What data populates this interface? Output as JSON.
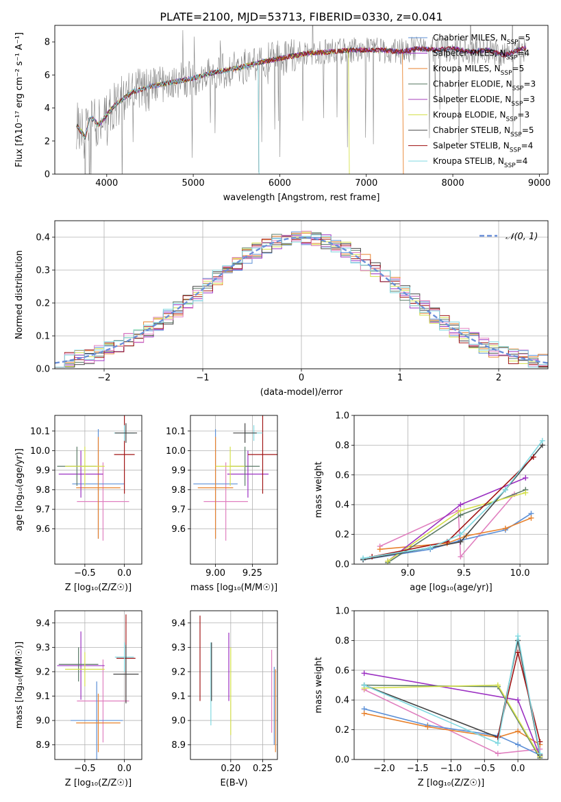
{
  "figure_title": "PLATE=2100, MJD=53713, FIBERID=0330, z=0.041",
  "model_colors": [
    "#5b8fd6",
    "#9b30c2",
    "#e8822d",
    "#5a7a66",
    "#a43fb8",
    "#d4e04a",
    "#444444",
    "#a01515",
    "#7fd8e0"
  ],
  "chart_data": [
    {
      "id": "spectrum",
      "type": "line",
      "title": "PLATE=2100, MJD=53713, FIBERID=0330, z=0.041",
      "xlabel": "wavelength [Angstrom, rest frame]",
      "ylabel": "Flux [fλ10⁻¹⁷ erg cm⁻² s⁻¹ A⁻¹]",
      "xlim": [
        3400,
        9100
      ],
      "ylim": [
        0,
        9
      ],
      "xticks": [
        4000,
        5000,
        6000,
        7000,
        8000,
        9000
      ],
      "yticks": [
        0,
        2,
        4,
        6,
        8
      ],
      "grid": false,
      "legend_position": "top-right",
      "legend": [
        {
          "name": "Chabrier MILES, N_SSP=5",
          "label": "Chabrier MILES, N",
          "sub": "SSP",
          "tail": "=5"
        },
        {
          "name": "Salpeter MILES, N_SSP=4",
          "label": "Salpeter MILES, N",
          "sub": "SSP",
          "tail": "=4"
        },
        {
          "name": "Kroupa MILES, N_SSP=5",
          "label": "Kroupa MILES, N",
          "sub": "SSP",
          "tail": "=5"
        },
        {
          "name": "Chabrier ELODIE, N_SSP=3",
          "label": "Chabrier ELODIE, N",
          "sub": "SSP",
          "tail": "=3"
        },
        {
          "name": "Salpeter ELODIE, N_SSP=3",
          "label": "Salpeter ELODIE, N",
          "sub": "SSP",
          "tail": "=3"
        },
        {
          "name": "Kroupa ELODIE, N_SSP=3",
          "label": "Kroupa ELODIE, N",
          "sub": "SSP",
          "tail": "=3"
        },
        {
          "name": "Chabrier STELIB, N_SSP=5",
          "label": "Chabrier STELIB, N",
          "sub": "SSP",
          "tail": "=5"
        },
        {
          "name": "Salpeter STELIB, N_SSP=4",
          "label": "Salpeter STELIB, N",
          "sub": "SSP",
          "tail": "=4"
        },
        {
          "name": "Kroupa STELIB, N_SSP=4",
          "label": "Kroupa STELIB, N",
          "sub": "SSP",
          "tail": "=4"
        }
      ],
      "data_series": {
        "color": "#808080",
        "x_start": 3650,
        "x_end": 8850
      },
      "continuum": {
        "x": [
          3650,
          3700,
          3750,
          3800,
          3850,
          3900,
          3950,
          4000,
          4100,
          4200,
          4300,
          4400,
          4500,
          4700,
          5000,
          5200,
          5500,
          5800,
          6000,
          6300,
          6600,
          6800,
          7000,
          7200,
          7400,
          7600,
          7800,
          8000,
          8200,
          8400,
          8600,
          8800
        ],
        "y": [
          3.0,
          2.6,
          2.2,
          3.4,
          3.3,
          3.0,
          3.2,
          3.6,
          4.2,
          4.6,
          5.0,
          5.1,
          5.3,
          5.5,
          5.8,
          6.1,
          6.4,
          6.8,
          7.0,
          7.3,
          7.4,
          7.5,
          7.5,
          7.5,
          7.4,
          7.6,
          7.5,
          7.6,
          7.4,
          7.5,
          7.2,
          7.6
        ]
      },
      "model_dropouts": [
        {
          "model": "Kroupa STELIB, N_SSP=4",
          "x": 5760
        },
        {
          "model": "Kroupa ELODIE, N_SSP=3",
          "x": 6800
        },
        {
          "model": "Kroupa MILES, N_SSP=5",
          "x": 7420
        }
      ]
    },
    {
      "id": "residuals",
      "type": "histogram",
      "xlabel": "(data-model)/error",
      "ylabel": "Normed distribution",
      "xlim": [
        -2.5,
        2.5
      ],
      "ylim": [
        0,
        0.45
      ],
      "xticks": [
        -2,
        -1,
        0,
        1,
        2
      ],
      "yticks": [
        0.0,
        0.1,
        0.2,
        0.3,
        0.4
      ],
      "grid": true,
      "legend_position": "top-right",
      "reference_curve": {
        "name": "𝒩(0, 1)",
        "label": "𝒩(0, 1)",
        "color": "#6a8fd8",
        "mean": 0,
        "sigma": 1
      },
      "bin_width": 0.1,
      "hist_colors": [
        "#5b8fd6",
        "#e8822d",
        "#5a7a66",
        "#9b30c2",
        "#d4e04a",
        "#444444",
        "#a01515",
        "#e07fbf",
        "#7fd8e0"
      ]
    },
    {
      "id": "age_vs_z",
      "type": "scatter",
      "xlabel": "Z [log₁₀(Z/Z☉)]",
      "ylabel": "age  [log₁₀(age/yr)]",
      "xlim": [
        -0.88,
        0.22
      ],
      "ylim": [
        9.42,
        10.18
      ],
      "xticks": [
        -0.5,
        0.0
      ],
      "yticks": [
        9.6,
        9.7,
        9.8,
        9.9,
        10.0,
        10.1
      ],
      "grid": true,
      "points": [
        {
          "x": -0.27,
          "y": 9.74,
          "xerr": 0.33,
          "yerr": 0.2,
          "color": "#e07fbf"
        },
        {
          "x": -0.33,
          "y": 9.83,
          "xerr": 0.33,
          "yerr": 0.28,
          "color": "#5b8fd6"
        },
        {
          "x": -0.33,
          "y": 9.81,
          "xerr": 0.28,
          "yerr": 0.26,
          "color": "#e8822d"
        },
        {
          "x": -0.55,
          "y": 9.88,
          "xerr": 0.28,
          "yerr": 0.12,
          "color": "#9b30c2"
        },
        {
          "x": -0.6,
          "y": 9.92,
          "xerr": 0.25,
          "yerr": 0.1,
          "color": "#5a7a66"
        },
        {
          "x": -0.5,
          "y": 9.92,
          "xerr": 0.25,
          "yerr": 0.1,
          "color": "#d4e04a"
        },
        {
          "x": 0.0,
          "y": 9.98,
          "xerr": 0.13,
          "yerr": 0.2,
          "color": "#a01515"
        },
        {
          "x": 0.0,
          "y": 10.09,
          "xerr": 0.13,
          "yerr": 0.04,
          "color": "#7fd8e0"
        },
        {
          "x": 0.02,
          "y": 10.09,
          "xerr": 0.14,
          "yerr": 0.05,
          "color": "#444444"
        }
      ]
    },
    {
      "id": "age_vs_mass",
      "type": "scatter",
      "xlabel": "mass [log₁₀(M/M☉)]",
      "ylabel": "",
      "xlim": [
        8.83,
        9.42
      ],
      "ylim": [
        9.42,
        10.18
      ],
      "xticks": [
        9.0,
        9.25
      ],
      "yticks": [
        9.6,
        9.7,
        9.8,
        9.9,
        10.0,
        10.1
      ],
      "grid": true,
      "points": [
        {
          "x": 9.07,
          "y": 9.74,
          "xerr": 0.15,
          "yerr": 0.2,
          "color": "#e07fbf"
        },
        {
          "x": 9.0,
          "y": 9.83,
          "xerr": 0.15,
          "yerr": 0.28,
          "color": "#5b8fd6"
        },
        {
          "x": 9.0,
          "y": 9.81,
          "xerr": 0.12,
          "yerr": 0.26,
          "color": "#e8822d"
        },
        {
          "x": 9.22,
          "y": 9.88,
          "xerr": 0.14,
          "yerr": 0.12,
          "color": "#9b30c2"
        },
        {
          "x": 9.2,
          "y": 9.92,
          "xerr": 0.1,
          "yerr": 0.1,
          "color": "#5a7a66"
        },
        {
          "x": 9.1,
          "y": 9.92,
          "xerr": 0.1,
          "yerr": 0.1,
          "color": "#d4e04a"
        },
        {
          "x": 9.32,
          "y": 9.98,
          "xerr": 0.1,
          "yerr": 0.2,
          "color": "#a01515"
        },
        {
          "x": 9.26,
          "y": 10.09,
          "xerr": 0.06,
          "yerr": 0.04,
          "color": "#7fd8e0"
        },
        {
          "x": 9.2,
          "y": 10.09,
          "xerr": 0.08,
          "yerr": 0.05,
          "color": "#444444"
        }
      ]
    },
    {
      "id": "mass_weight_vs_age",
      "type": "line",
      "xlabel": "age  [log₁₀(age/yr)]",
      "ylabel": "mass weight",
      "xlim": [
        8.52,
        10.25
      ],
      "ylim": [
        0.0,
        1.0
      ],
      "xticks": [
        9.0,
        9.5,
        10.0
      ],
      "yticks": [
        0.0,
        0.2,
        0.4,
        0.6,
        0.8,
        1.0
      ],
      "grid": true,
      "series": [
        {
          "color": "#e07fbf",
          "x": [
            8.75,
            9.45,
            9.47,
            9.95
          ],
          "y": [
            0.12,
            0.36,
            0.05,
            0.47
          ]
        },
        {
          "color": "#5b8fd6",
          "x": [
            8.6,
            9.2,
            9.47,
            9.87,
            10.1
          ],
          "y": [
            0.03,
            0.1,
            0.16,
            0.23,
            0.34
          ]
        },
        {
          "color": "#e8822d",
          "x": [
            8.75,
            9.35,
            9.52,
            9.87,
            10.1
          ],
          "y": [
            0.1,
            0.14,
            0.19,
            0.24,
            0.31
          ]
        },
        {
          "color": "#9b30c2",
          "x": [
            8.82,
            9.47,
            10.05
          ],
          "y": [
            0.02,
            0.4,
            0.58
          ]
        },
        {
          "color": "#5a7a66",
          "x": [
            8.82,
            9.47,
            10.05
          ],
          "y": [
            0.01,
            0.33,
            0.5
          ]
        },
        {
          "color": "#d4e04a",
          "x": [
            8.82,
            9.47,
            10.05
          ],
          "y": [
            0.02,
            0.36,
            0.48
          ]
        },
        {
          "color": "#444444",
          "x": [
            8.6,
            9.2,
            9.47,
            9.87,
            10.2
          ],
          "y": [
            0.03,
            0.11,
            0.15,
            0.5,
            0.8
          ]
        },
        {
          "color": "#a01515",
          "x": [
            8.68,
            9.35,
            10.12
          ],
          "y": [
            0.05,
            0.15,
            0.72
          ]
        },
        {
          "color": "#7fd8e0",
          "x": [
            8.6,
            9.2,
            9.47,
            9.87,
            10.2
          ],
          "y": [
            0.04,
            0.11,
            0.2,
            0.5,
            0.83
          ]
        }
      ]
    },
    {
      "id": "mass_vs_z",
      "type": "scatter",
      "xlabel": "Z [log₁₀(Z/Z☉)]",
      "ylabel": "mass [log₁₀(M/M☉)]",
      "xlim": [
        -0.88,
        0.22
      ],
      "ylim": [
        8.84,
        9.45
      ],
      "xticks": [
        -0.5,
        0.0
      ],
      "yticks": [
        8.9,
        9.0,
        9.1,
        9.2,
        9.3,
        9.4
      ],
      "grid": true,
      "points": [
        {
          "x": -0.27,
          "y": 9.08,
          "xerr": 0.33,
          "yerr": 0.17,
          "color": "#e07fbf"
        },
        {
          "x": -0.35,
          "y": 9.0,
          "xerr": 0.33,
          "yerr": 0.16,
          "color": "#5b8fd6"
        },
        {
          "x": -0.33,
          "y": 8.99,
          "xerr": 0.28,
          "yerr": 0.12,
          "color": "#e8822d"
        },
        {
          "x": -0.55,
          "y": 9.225,
          "xerr": 0.3,
          "yerr": 0.14,
          "color": "#9b30c2"
        },
        {
          "x": -0.58,
          "y": 9.23,
          "xerr": 0.25,
          "yerr": 0.07,
          "color": "#5a7a66"
        },
        {
          "x": -0.5,
          "y": 9.21,
          "xerr": 0.25,
          "yerr": 0.07,
          "color": "#d4e04a"
        },
        {
          "x": 0.02,
          "y": 9.255,
          "xerr": 0.12,
          "yerr": 0.18,
          "color": "#a01515"
        },
        {
          "x": 0.0,
          "y": 9.26,
          "xerr": 0.12,
          "yerr": 0.06,
          "color": "#7fd8e0"
        },
        {
          "x": 0.02,
          "y": 9.19,
          "xerr": 0.16,
          "yerr": 0.12,
          "color": "#444444"
        }
      ]
    },
    {
      "id": "mass_vs_ebv",
      "type": "scatter",
      "xlabel": "E(B-V)",
      "ylabel": "",
      "xlim": [
        0.137,
        0.273
      ],
      "ylim": [
        8.84,
        9.45
      ],
      "xticks": [
        0.2,
        0.25
      ],
      "yticks": [
        8.9,
        9.0,
        9.1,
        9.2,
        9.3,
        9.4
      ],
      "grid": true,
      "points": [
        {
          "x": 0.152,
          "y": 9.255,
          "xerr": 0,
          "yerr": 0.175,
          "color": "#a01515"
        },
        {
          "x": 0.169,
          "y": 9.15,
          "xerr": 0,
          "yerr": 0.17,
          "color": "#7fd8e0"
        },
        {
          "x": 0.17,
          "y": 9.2,
          "xerr": 0,
          "yerr": 0.12,
          "color": "#444444"
        },
        {
          "x": 0.197,
          "y": 9.22,
          "xerr": 0,
          "yerr": 0.14,
          "color": "#9b30c2"
        },
        {
          "x": 0.2,
          "y": 9.12,
          "xerr": 0,
          "yerr": 0.18,
          "color": "#d4e04a"
        },
        {
          "x": 0.264,
          "y": 9.12,
          "xerr": 0,
          "yerr": 0.17,
          "color": "#e07fbf"
        },
        {
          "x": 0.268,
          "y": 9.06,
          "xerr": 0,
          "yerr": 0.16,
          "color": "#5b8fd6"
        },
        {
          "x": 0.27,
          "y": 9.04,
          "xerr": 0,
          "yerr": 0.17,
          "color": "#e8822d"
        }
      ]
    },
    {
      "id": "mass_weight_vs_z",
      "type": "line",
      "xlabel": "Z [log₁₀(Z/Z☉)]",
      "ylabel": "mass weight",
      "xlim": [
        -2.45,
        0.45
      ],
      "ylim": [
        0.0,
        1.0
      ],
      "xticks": [
        -2.0,
        -1.5,
        -1.0,
        -0.5,
        0.0
      ],
      "yticks": [
        0.0,
        0.2,
        0.4,
        0.6,
        0.8,
        1.0
      ],
      "grid": true,
      "series": [
        {
          "color": "#e07fbf",
          "x": [
            -2.3,
            -0.3,
            0.33
          ],
          "y": [
            0.47,
            0.04,
            0.07
          ]
        },
        {
          "color": "#5b8fd6",
          "x": [
            -2.3,
            -1.35,
            -0.3,
            0.0,
            0.33
          ],
          "y": [
            0.34,
            0.23,
            0.16,
            0.1,
            0.03
          ]
        },
        {
          "color": "#e8822d",
          "x": [
            -2.3,
            -1.35,
            -0.3,
            0.0,
            0.33
          ],
          "y": [
            0.31,
            0.22,
            0.15,
            0.19,
            0.1
          ]
        },
        {
          "color": "#9b30c2",
          "x": [
            -2.3,
            0.0,
            0.33
          ],
          "y": [
            0.58,
            0.4,
            0.02
          ]
        },
        {
          "color": "#5a7a66",
          "x": [
            -2.3,
            -0.3,
            0.33
          ],
          "y": [
            0.5,
            0.49,
            0.01
          ]
        },
        {
          "color": "#d4e04a",
          "x": [
            -2.3,
            -0.3,
            0.33
          ],
          "y": [
            0.48,
            0.5,
            0.02
          ]
        },
        {
          "color": "#444444",
          "x": [
            -2.3,
            -0.3,
            0.0,
            0.33
          ],
          "y": [
            0.5,
            0.15,
            0.8,
            0.03
          ]
        },
        {
          "color": "#a01515",
          "x": [
            -0.3,
            0.0,
            0.33
          ],
          "y": [
            0.15,
            0.72,
            0.12
          ]
        },
        {
          "color": "#7fd8e0",
          "x": [
            -2.3,
            -0.3,
            0.0,
            0.33
          ],
          "y": [
            0.5,
            0.11,
            0.83,
            0.04
          ]
        }
      ]
    }
  ]
}
